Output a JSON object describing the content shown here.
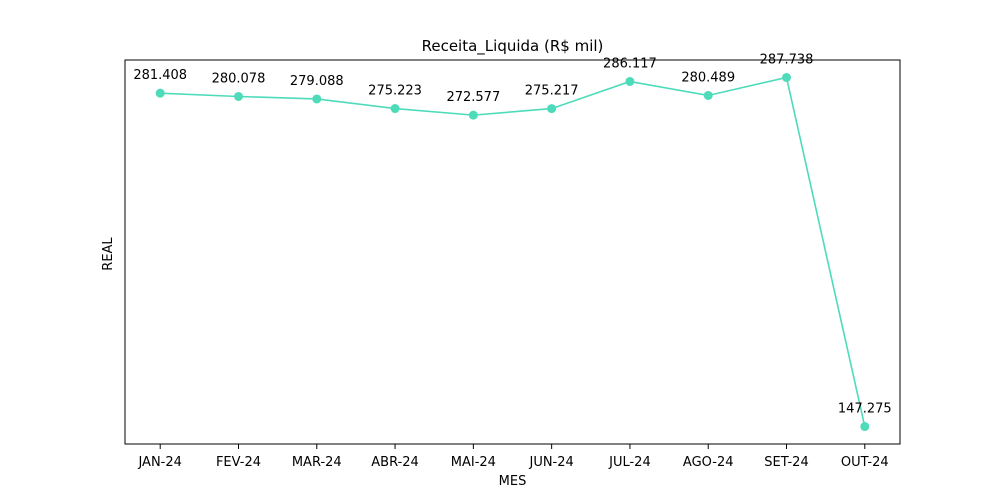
{
  "chart_data": {
    "type": "line",
    "title": "Receita_Liquida (R$ mil)",
    "xlabel": "MES",
    "ylabel": "REAL",
    "categories": [
      "JAN-24",
      "FEV-24",
      "MAR-24",
      "ABR-24",
      "MAI-24",
      "JUN-24",
      "JUL-24",
      "AGO-24",
      "SET-24",
      "OUT-24"
    ],
    "series": [
      {
        "values": [
          281.408,
          280.078,
          279.088,
          275.223,
          272.577,
          275.217,
          286.117,
          280.489,
          287.738,
          147.275
        ],
        "data_labels": [
          "281.408",
          "280.078",
          "279.088",
          "275.223",
          "272.577",
          "275.217",
          "286.117",
          "280.489",
          "287.738",
          "147.275"
        ],
        "color": "#4ddbba"
      }
    ],
    "ylim": [
      140.252,
      294.761
    ],
    "y_ticks_visible": false,
    "grid": false,
    "legend": "none"
  }
}
